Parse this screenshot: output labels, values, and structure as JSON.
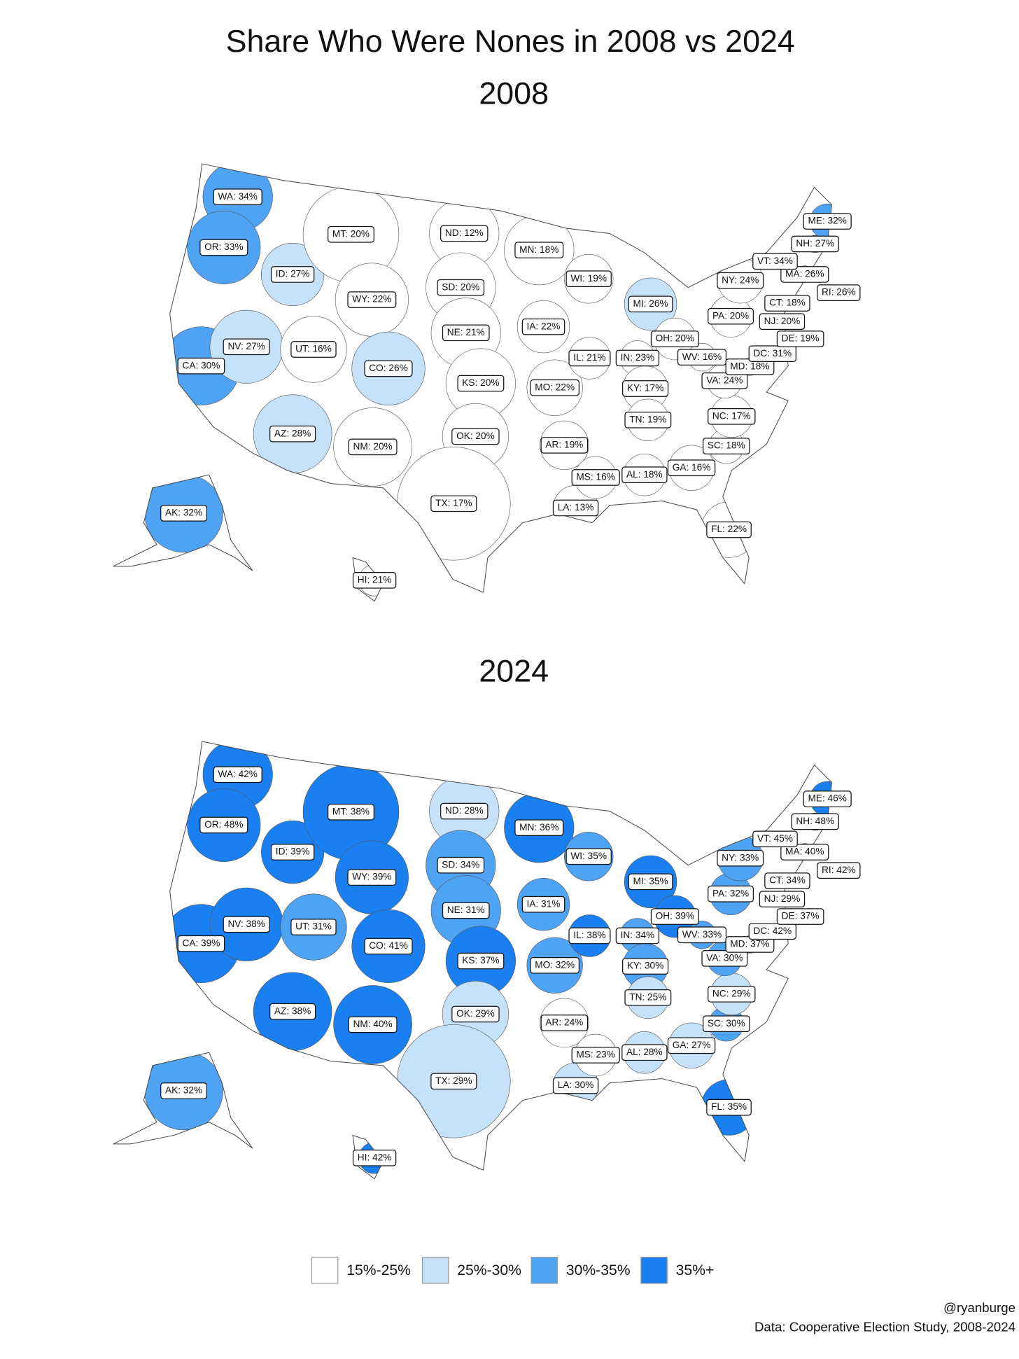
{
  "title": "Share Who Were Nones in 2008 vs 2024",
  "maps": [
    {
      "title": "2008",
      "states": [
        {
          "label": "WA: 34%",
          "value": 34,
          "color": "#4ea3f5"
        },
        {
          "label": "OR: 33%",
          "value": 33,
          "color": "#4ea3f5"
        },
        {
          "label": "CA: 30%",
          "value": 30,
          "color": "#4ea3f5"
        },
        {
          "label": "ID: 27%",
          "value": 27,
          "color": "#c6e2fb"
        },
        {
          "label": "NV: 27%",
          "value": 27,
          "color": "#c6e2fb"
        },
        {
          "label": "MT: 20%",
          "value": 20,
          "color": "#ffffff"
        },
        {
          "label": "WY: 22%",
          "value": 22,
          "color": "#ffffff"
        },
        {
          "label": "UT: 16%",
          "value": 16,
          "color": "#ffffff"
        },
        {
          "label": "AZ: 28%",
          "value": 28,
          "color": "#c6e2fb"
        },
        {
          "label": "CO: 26%",
          "value": 26,
          "color": "#c6e2fb"
        },
        {
          "label": "NM: 20%",
          "value": 20,
          "color": "#ffffff"
        },
        {
          "label": "ND: 12%",
          "value": 12,
          "color": "#ffffff"
        },
        {
          "label": "SD: 20%",
          "value": 20,
          "color": "#ffffff"
        },
        {
          "label": "NE: 21%",
          "value": 21,
          "color": "#ffffff"
        },
        {
          "label": "KS: 20%",
          "value": 20,
          "color": "#ffffff"
        },
        {
          "label": "OK: 20%",
          "value": 20,
          "color": "#ffffff"
        },
        {
          "label": "TX: 17%",
          "value": 17,
          "color": "#ffffff"
        },
        {
          "label": "MN: 18%",
          "value": 18,
          "color": "#ffffff"
        },
        {
          "label": "IA: 22%",
          "value": 22,
          "color": "#ffffff"
        },
        {
          "label": "MO: 22%",
          "value": 22,
          "color": "#ffffff"
        },
        {
          "label": "AR: 19%",
          "value": 19,
          "color": "#ffffff"
        },
        {
          "label": "LA: 13%",
          "value": 13,
          "color": "#ffffff"
        },
        {
          "label": "WI: 19%",
          "value": 19,
          "color": "#ffffff"
        },
        {
          "label": "IL: 21%",
          "value": 21,
          "color": "#ffffff"
        },
        {
          "label": "MI: 26%",
          "value": 26,
          "color": "#c6e2fb"
        },
        {
          "label": "IN: 23%",
          "value": 23,
          "color": "#ffffff"
        },
        {
          "label": "OH: 20%",
          "value": 20,
          "color": "#ffffff"
        },
        {
          "label": "KY: 17%",
          "value": 17,
          "color": "#ffffff"
        },
        {
          "label": "TN: 19%",
          "value": 19,
          "color": "#ffffff"
        },
        {
          "label": "MS: 16%",
          "value": 16,
          "color": "#ffffff"
        },
        {
          "label": "AL: 18%",
          "value": 18,
          "color": "#ffffff"
        },
        {
          "label": "GA: 16%",
          "value": 16,
          "color": "#ffffff"
        },
        {
          "label": "FL: 22%",
          "value": 22,
          "color": "#ffffff"
        },
        {
          "label": "SC: 18%",
          "value": 18,
          "color": "#ffffff"
        },
        {
          "label": "NC: 17%",
          "value": 17,
          "color": "#ffffff"
        },
        {
          "label": "VA: 24%",
          "value": 24,
          "color": "#ffffff"
        },
        {
          "label": "WV: 16%",
          "value": 16,
          "color": "#ffffff"
        },
        {
          "label": "MD: 18%",
          "value": 18,
          "color": "#ffffff"
        },
        {
          "label": "DC: 31%",
          "value": 31,
          "color": "#4ea3f5"
        },
        {
          "label": "DE: 19%",
          "value": 19,
          "color": "#ffffff"
        },
        {
          "label": "NJ: 20%",
          "value": 20,
          "color": "#ffffff"
        },
        {
          "label": "PA: 20%",
          "value": 20,
          "color": "#ffffff"
        },
        {
          "label": "NY: 24%",
          "value": 24,
          "color": "#ffffff"
        },
        {
          "label": "CT: 18%",
          "value": 18,
          "color": "#ffffff"
        },
        {
          "label": "RI: 26%",
          "value": 26,
          "color": "#c6e2fb"
        },
        {
          "label": "MA: 26%",
          "value": 26,
          "color": "#c6e2fb"
        },
        {
          "label": "VT: 34%",
          "value": 34,
          "color": "#4ea3f5"
        },
        {
          "label": "NH: 27%",
          "value": 27,
          "color": "#4ea3f5"
        },
        {
          "label": "ME: 32%",
          "value": 32,
          "color": "#4ea3f5"
        },
        {
          "label": "AK: 32%",
          "value": 32,
          "color": "#4ea3f5"
        },
        {
          "label": "HI: 21%",
          "value": 21,
          "color": "#ffffff"
        }
      ]
    },
    {
      "title": "2024",
      "states": [
        {
          "label": "WA: 42%",
          "value": 42,
          "color": "#1a7ff0"
        },
        {
          "label": "OR: 48%",
          "value": 48,
          "color": "#1a7ff0"
        },
        {
          "label": "CA: 39%",
          "value": 39,
          "color": "#1a7ff0"
        },
        {
          "label": "ID: 39%",
          "value": 39,
          "color": "#1a7ff0"
        },
        {
          "label": "NV: 38%",
          "value": 38,
          "color": "#1a7ff0"
        },
        {
          "label": "MT: 38%",
          "value": 38,
          "color": "#1a7ff0"
        },
        {
          "label": "WY: 39%",
          "value": 39,
          "color": "#1a7ff0"
        },
        {
          "label": "UT: 31%",
          "value": 31,
          "color": "#4ea3f5"
        },
        {
          "label": "AZ: 38%",
          "value": 38,
          "color": "#1a7ff0"
        },
        {
          "label": "CO: 41%",
          "value": 41,
          "color": "#1a7ff0"
        },
        {
          "label": "NM: 40%",
          "value": 40,
          "color": "#1a7ff0"
        },
        {
          "label": "ND: 28%",
          "value": 28,
          "color": "#c6e2fb"
        },
        {
          "label": "SD: 34%",
          "value": 34,
          "color": "#4ea3f5"
        },
        {
          "label": "NE: 31%",
          "value": 31,
          "color": "#4ea3f5"
        },
        {
          "label": "KS: 37%",
          "value": 37,
          "color": "#1a7ff0"
        },
        {
          "label": "OK: 29%",
          "value": 29,
          "color": "#c6e2fb"
        },
        {
          "label": "TX: 29%",
          "value": 29,
          "color": "#c6e2fb"
        },
        {
          "label": "MN: 36%",
          "value": 36,
          "color": "#1a7ff0"
        },
        {
          "label": "IA: 31%",
          "value": 31,
          "color": "#4ea3f5"
        },
        {
          "label": "MO: 32%",
          "value": 32,
          "color": "#4ea3f5"
        },
        {
          "label": "AR: 24%",
          "value": 24,
          "color": "#ffffff"
        },
        {
          "label": "LA: 30%",
          "value": 30,
          "color": "#c6e2fb"
        },
        {
          "label": "WI: 35%",
          "value": 35,
          "color": "#4ea3f5"
        },
        {
          "label": "IL: 38%",
          "value": 38,
          "color": "#1a7ff0"
        },
        {
          "label": "MI: 35%",
          "value": 35,
          "color": "#1a7ff0"
        },
        {
          "label": "IN: 34%",
          "value": 34,
          "color": "#4ea3f5"
        },
        {
          "label": "OH: 39%",
          "value": 39,
          "color": "#1a7ff0"
        },
        {
          "label": "KY: 30%",
          "value": 30,
          "color": "#4ea3f5"
        },
        {
          "label": "TN: 25%",
          "value": 25,
          "color": "#c6e2fb"
        },
        {
          "label": "MS: 23%",
          "value": 23,
          "color": "#ffffff"
        },
        {
          "label": "AL: 28%",
          "value": 28,
          "color": "#c6e2fb"
        },
        {
          "label": "GA: 27%",
          "value": 27,
          "color": "#c6e2fb"
        },
        {
          "label": "FL: 35%",
          "value": 35,
          "color": "#1a7ff0"
        },
        {
          "label": "SC: 30%",
          "value": 30,
          "color": "#4ea3f5"
        },
        {
          "label": "NC: 29%",
          "value": 29,
          "color": "#c6e2fb"
        },
        {
          "label": "VA: 30%",
          "value": 30,
          "color": "#4ea3f5"
        },
        {
          "label": "WV: 33%",
          "value": 33,
          "color": "#4ea3f5"
        },
        {
          "label": "MD: 37%",
          "value": 37,
          "color": "#1a7ff0"
        },
        {
          "label": "DC: 42%",
          "value": 42,
          "color": "#1a7ff0"
        },
        {
          "label": "DE: 37%",
          "value": 37,
          "color": "#1a7ff0"
        },
        {
          "label": "NJ: 29%",
          "value": 29,
          "color": "#c6e2fb"
        },
        {
          "label": "PA: 32%",
          "value": 32,
          "color": "#4ea3f5"
        },
        {
          "label": "NY: 33%",
          "value": 33,
          "color": "#4ea3f5"
        },
        {
          "label": "CT: 34%",
          "value": 34,
          "color": "#4ea3f5"
        },
        {
          "label": "RI: 42%",
          "value": 42,
          "color": "#1a7ff0"
        },
        {
          "label": "MA: 40%",
          "value": 40,
          "color": "#1a7ff0"
        },
        {
          "label": "VT: 45%",
          "value": 45,
          "color": "#1a7ff0"
        },
        {
          "label": "NH: 48%",
          "value": 48,
          "color": "#1a7ff0"
        },
        {
          "label": "ME: 46%",
          "value": 46,
          "color": "#1a7ff0"
        },
        {
          "label": "AK: 32%",
          "value": 32,
          "color": "#4ea3f5"
        },
        {
          "label": "HI: 42%",
          "value": 42,
          "color": "#1a7ff0"
        }
      ]
    }
  ],
  "legend": [
    {
      "label": "15%-25%",
      "color": "#ffffff"
    },
    {
      "label": "25%-30%",
      "color": "#c6e2fb"
    },
    {
      "label": "30%-35%",
      "color": "#4ea3f5"
    },
    {
      "label": "35%+",
      "color": "#1a7ff0"
    }
  ],
  "credits": [
    "@ryanburge",
    "Data: Cooperative Election Study, 2008-2024"
  ]
}
